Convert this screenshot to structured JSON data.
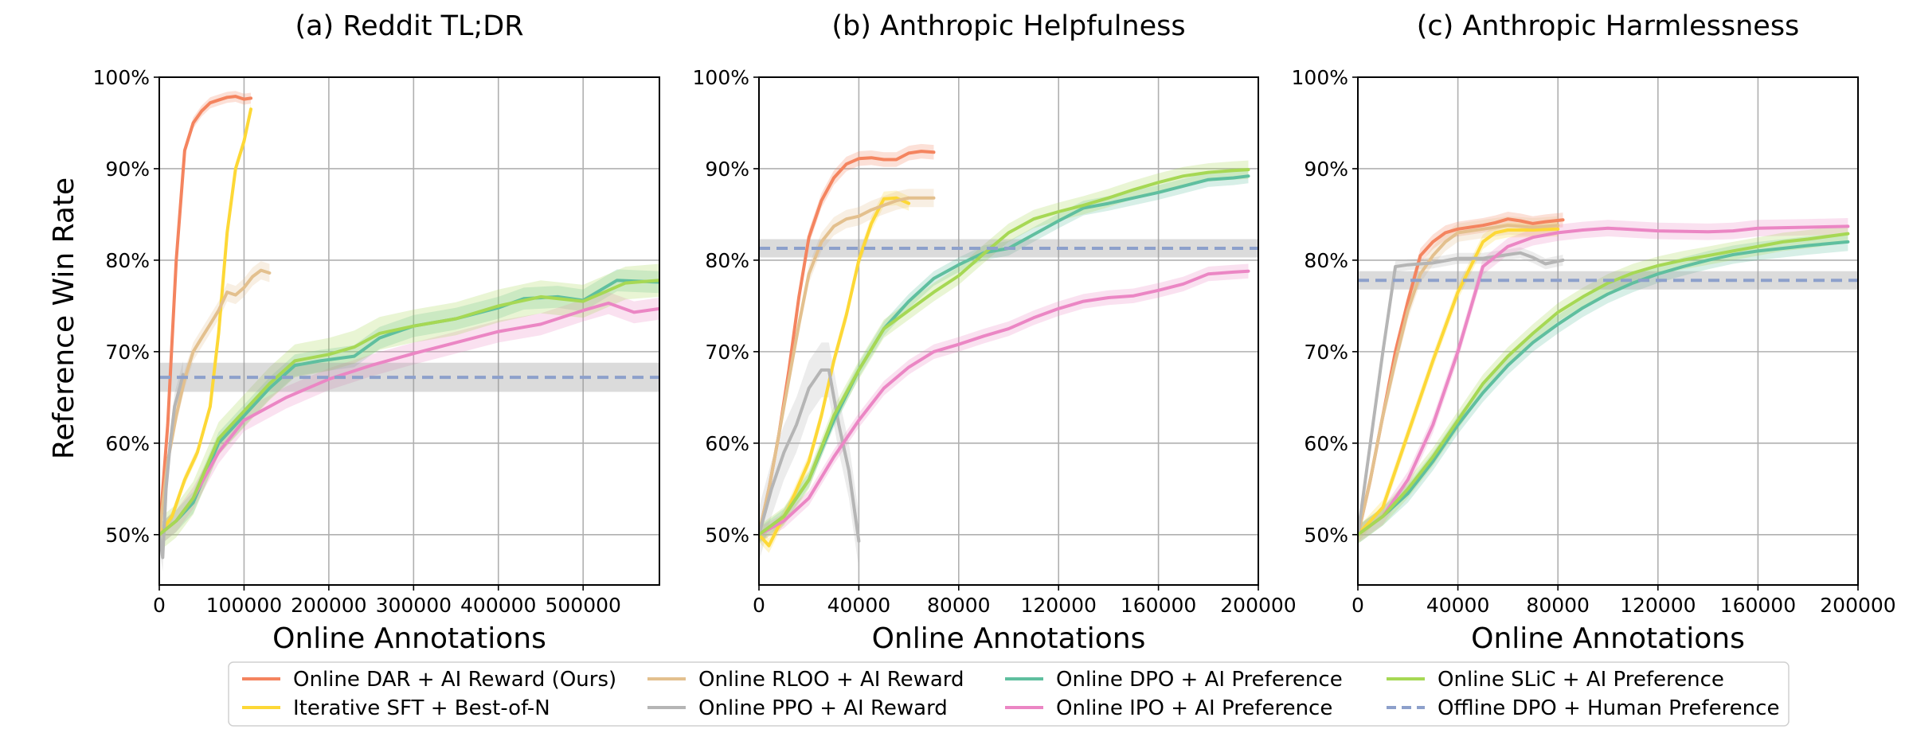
{
  "figure": {
    "ylabel": "Reference Win Rate",
    "legend": {
      "location": "bottom-center",
      "entries": [
        {
          "name": "Online DAR + AI Reward (Ours)",
          "color": "#f4845f",
          "style": "solid"
        },
        {
          "name": "Iterative SFT + Best-of-N",
          "color": "#fdd836",
          "style": "solid"
        },
        {
          "name": "Online RLOO + AI Reward",
          "color": "#e3c08e",
          "style": "solid"
        },
        {
          "name": "Online PPO + AI Reward",
          "color": "#b5b5b5",
          "style": "solid"
        },
        {
          "name": "Online DPO + AI Preference",
          "color": "#5fbf9f",
          "style": "solid"
        },
        {
          "name": "Online IPO + AI Preference",
          "color": "#eb86c4",
          "style": "solid"
        },
        {
          "name": "Online SLiC + AI Preference",
          "color": "#a6d854",
          "style": "solid"
        },
        {
          "name": "Offline DPO + Human Preference",
          "color": "#8da0cb",
          "style": "dashed"
        }
      ]
    }
  },
  "chart_data": [
    {
      "type": "line",
      "title": "(a) Reddit TL;DR",
      "xlabel": "Online Annotations",
      "ylabel": "Reference Win Rate",
      "xlim": [
        0,
        590000
      ],
      "ylim": [
        44.5,
        100
      ],
      "xticks": [
        0,
        100000,
        200000,
        300000,
        400000,
        500000
      ],
      "xtick_labels": [
        "0",
        "100000",
        "200000",
        "300000",
        "400000",
        "500000"
      ],
      "yticks": [
        50,
        60,
        70,
        80,
        90,
        100
      ],
      "ytick_labels": [
        "50%",
        "60%",
        "70%",
        "80%",
        "90%",
        "100%"
      ],
      "grid": true,
      "series": [
        {
          "name": "Online DAR + AI Reward (Ours)",
          "color": "#f4845f",
          "band": 0.6,
          "x": [
            0,
            10000,
            20000,
            30000,
            40000,
            50000,
            60000,
            70000,
            80000,
            90000,
            100000,
            108000
          ],
          "y": [
            50,
            62,
            80,
            92,
            95,
            96.3,
            97.2,
            97.5,
            97.8,
            97.9,
            97.6,
            97.7
          ]
        },
        {
          "name": "Iterative SFT + Best-of-N",
          "color": "#fdd836",
          "band": 0.6,
          "x": [
            0,
            15000,
            30000,
            45000,
            60000,
            70000,
            80000,
            90000,
            100000,
            108000
          ],
          "y": [
            50,
            52,
            56,
            59,
            64,
            72,
            83,
            90,
            93,
            96.5
          ]
        },
        {
          "name": "Online RLOO + AI Reward",
          "color": "#e3c08e",
          "band": 1.0,
          "x": [
            0,
            10000,
            20000,
            30000,
            40000,
            50000,
            60000,
            70000,
            80000,
            90000,
            100000,
            110000,
            120000,
            130000
          ],
          "y": [
            50,
            58,
            63,
            67,
            70,
            71.5,
            73,
            74.5,
            76.5,
            76.2,
            77,
            78.2,
            78.9,
            78.6
          ]
        },
        {
          "name": "Online PPO + AI Reward",
          "color": "#b5b5b5",
          "band": 1.5,
          "x": [
            0,
            4000,
            8000,
            13000,
            18000,
            24000,
            28000
          ],
          "y": [
            50,
            47.5,
            55,
            60,
            64,
            66,
            67.5
          ]
        },
        {
          "name": "Online DPO + AI Preference",
          "color": "#5fbf9f",
          "band": 1.2,
          "x": [
            0,
            20000,
            40000,
            70000,
            100000,
            130000,
            160000,
            190000,
            230000,
            260000,
            300000,
            350000,
            400000,
            430000,
            470000,
            500000,
            540000,
            590000
          ],
          "y": [
            50,
            51.5,
            53.5,
            60,
            63,
            66,
            68.5,
            69,
            69.5,
            71.5,
            72.8,
            73.6,
            74.8,
            75.8,
            76,
            75.6,
            77.8,
            77.6
          ]
        },
        {
          "name": "Online IPO + AI Preference",
          "color": "#eb86c4",
          "band": 1.2,
          "x": [
            0,
            20000,
            40000,
            70000,
            100000,
            150000,
            200000,
            250000,
            300000,
            350000,
            400000,
            450000,
            500000,
            530000,
            560000,
            590000
          ],
          "y": [
            50,
            51.5,
            54,
            59,
            62.5,
            65,
            67,
            68.5,
            69.8,
            71,
            72.2,
            73,
            74.5,
            75.3,
            74.3,
            74.7
          ]
        },
        {
          "name": "Online SLiC + AI Preference",
          "color": "#a6d854",
          "band": 1.8,
          "x": [
            0,
            20000,
            40000,
            70000,
            100000,
            130000,
            160000,
            200000,
            230000,
            260000,
            300000,
            350000,
            400000,
            450000,
            500000,
            550000,
            590000
          ],
          "y": [
            50,
            51.5,
            54,
            60.5,
            63.5,
            66.5,
            69,
            69.7,
            70.5,
            72,
            72.8,
            73.6,
            75,
            76,
            75.5,
            77.5,
            77.8
          ]
        },
        {
          "name": "Offline DPO + Human Preference",
          "color": "#8da0cb",
          "dashed": true,
          "band": 1.6,
          "x": [
            0,
            590000
          ],
          "y": [
            67.2,
            67.2
          ]
        }
      ]
    },
    {
      "type": "line",
      "title": "(b) Anthropic Helpfulness",
      "xlabel": "Online Annotations",
      "ylabel": "Reference Win Rate",
      "xlim": [
        0,
        200000
      ],
      "ylim": [
        44.5,
        100
      ],
      "xticks": [
        0,
        40000,
        80000,
        120000,
        160000,
        200000
      ],
      "xtick_labels": [
        "0",
        "40000",
        "80000",
        "120000",
        "160000",
        "200000"
      ],
      "yticks": [
        50,
        60,
        70,
        80,
        90,
        100
      ],
      "ytick_labels": [
        "50%",
        "60%",
        "70%",
        "80%",
        "90%",
        "100%"
      ],
      "grid": true,
      "series": [
        {
          "name": "Online DAR + AI Reward (Ours)",
          "color": "#f4845f",
          "band": 0.8,
          "x": [
            0,
            4000,
            8000,
            12000,
            16000,
            20000,
            25000,
            30000,
            35000,
            40000,
            45000,
            50000,
            55000,
            60000,
            65000,
            70000
          ],
          "y": [
            50,
            55,
            61,
            68,
            76,
            82.5,
            86.5,
            89,
            90.5,
            91.1,
            91.2,
            91.0,
            91.0,
            91.7,
            91.9,
            91.8
          ]
        },
        {
          "name": "Iterative SFT + Best-of-N",
          "color": "#fdd836",
          "band": 0.8,
          "x": [
            0,
            4000,
            8000,
            12000,
            16000,
            20000,
            25000,
            30000,
            35000,
            40000,
            45000,
            50000,
            55000,
            60000
          ],
          "y": [
            50,
            48.8,
            51,
            53,
            55.5,
            58,
            63,
            69,
            74,
            80,
            84,
            86.7,
            86.8,
            86.2
          ]
        },
        {
          "name": "Online RLOO + AI Reward",
          "color": "#e3c08e",
          "band": 1.0,
          "x": [
            0,
            4000,
            8000,
            12000,
            16000,
            20000,
            25000,
            30000,
            35000,
            40000,
            45000,
            50000,
            55000,
            60000,
            65000,
            70000
          ],
          "y": [
            50,
            55,
            61,
            67,
            73,
            78.5,
            82,
            83.7,
            84.5,
            84.8,
            85.5,
            86,
            86.5,
            86.8,
            86.8,
            86.8
          ]
        },
        {
          "name": "Online PPO + AI Reward",
          "color": "#b5b5b5",
          "band": 3.0,
          "x": [
            0,
            5000,
            10000,
            15000,
            20000,
            25000,
            28000,
            32000,
            36000,
            40000
          ],
          "y": [
            50,
            55,
            59,
            62,
            66,
            68,
            68,
            62,
            57,
            49.3
          ]
        },
        {
          "name": "Online DPO + AI Preference",
          "color": "#5fbf9f",
          "band": 0.8,
          "x": [
            0,
            10000,
            20000,
            30000,
            40000,
            50000,
            60000,
            70000,
            80000,
            90000,
            100000,
            110000,
            120000,
            130000,
            140000,
            150000,
            160000,
            170000,
            180000,
            190000,
            196000
          ],
          "y": [
            50,
            52,
            56,
            62.5,
            68,
            72.5,
            75.5,
            78,
            79.5,
            80.8,
            81.3,
            82.8,
            84.3,
            85.7,
            86.2,
            86.8,
            87.4,
            88.1,
            88.8,
            89.0,
            89.2
          ]
        },
        {
          "name": "Online IPO + AI Preference",
          "color": "#eb86c4",
          "band": 0.8,
          "x": [
            0,
            10000,
            20000,
            30000,
            40000,
            50000,
            60000,
            70000,
            80000,
            90000,
            100000,
            110000,
            120000,
            130000,
            140000,
            150000,
            160000,
            170000,
            180000,
            190000,
            196000
          ],
          "y": [
            50,
            51.5,
            54,
            58.5,
            62.5,
            66,
            68.3,
            70,
            70.8,
            71.7,
            72.5,
            73.7,
            74.7,
            75.5,
            75.9,
            76.1,
            76.7,
            77.4,
            78.5,
            78.7,
            78.8
          ]
        },
        {
          "name": "Online SLiC + AI Preference",
          "color": "#a6d854",
          "band": 1.0,
          "x": [
            0,
            10000,
            20000,
            30000,
            40000,
            50000,
            60000,
            70000,
            80000,
            90000,
            100000,
            110000,
            120000,
            130000,
            140000,
            150000,
            160000,
            170000,
            180000,
            190000,
            196000
          ],
          "y": [
            50,
            52,
            56,
            63,
            68,
            72.5,
            74.5,
            76.5,
            78.3,
            80.7,
            83,
            84.5,
            85.3,
            86,
            86.8,
            87.7,
            88.5,
            89.2,
            89.6,
            89.8,
            89.9
          ]
        },
        {
          "name": "Offline DPO + Human Preference",
          "color": "#8da0cb",
          "dashed": true,
          "band": 1.0,
          "x": [
            0,
            200000
          ],
          "y": [
            81.3,
            81.3
          ]
        }
      ]
    },
    {
      "type": "line",
      "title": "(c) Anthropic Harmlessness",
      "xlabel": "Online Annotations",
      "ylabel": "Reference Win Rate",
      "xlim": [
        0,
        200000
      ],
      "ylim": [
        44.5,
        100
      ],
      "xticks": [
        0,
        40000,
        80000,
        120000,
        160000,
        200000
      ],
      "xtick_labels": [
        "0",
        "40000",
        "80000",
        "120000",
        "160000",
        "200000"
      ],
      "yticks": [
        50,
        60,
        70,
        80,
        90,
        100
      ],
      "ytick_labels": [
        "50%",
        "60%",
        "70%",
        "80%",
        "90%",
        "100%"
      ],
      "grid": true,
      "series": [
        {
          "name": "Online DAR + AI Reward (Ours)",
          "color": "#f4845f",
          "band": 0.8,
          "x": [
            0,
            5000,
            10000,
            15000,
            20000,
            25000,
            30000,
            35000,
            40000,
            45000,
            50000,
            55000,
            60000,
            65000,
            70000,
            75000,
            82000
          ],
          "y": [
            50,
            56,
            63,
            70,
            75.5,
            80.5,
            82,
            83,
            83.4,
            83.6,
            83.8,
            84.1,
            84.5,
            84.3,
            84.0,
            84.2,
            84.4
          ]
        },
        {
          "name": "Iterative SFT + Best-of-N",
          "color": "#fdd836",
          "band": 0.8,
          "x": [
            0,
            10000,
            20000,
            30000,
            40000,
            50000,
            55000,
            60000,
            70000,
            80000
          ],
          "y": [
            50,
            53,
            61,
            69,
            76.5,
            82,
            83,
            83.3,
            83.3,
            83.4
          ]
        },
        {
          "name": "Online RLOO + AI Reward",
          "color": "#e3c08e",
          "band": 1.0,
          "x": [
            0,
            5000,
            10000,
            15000,
            20000,
            25000,
            30000,
            35000,
            40000,
            50000,
            60000,
            70000,
            80000
          ],
          "y": [
            50,
            56,
            63,
            69,
            74.5,
            78.5,
            80.5,
            82,
            83,
            83.4,
            83.8,
            83.6,
            83.8
          ]
        },
        {
          "name": "Online PPO + AI Reward",
          "color": "#b5b5b5",
          "band": 0.6,
          "x": [
            0,
            5000,
            10000,
            15000,
            20000,
            25000,
            30000,
            40000,
            50000,
            60000,
            65000,
            70000,
            75000,
            82000
          ],
          "y": [
            50,
            60,
            70,
            79.3,
            79.5,
            79.6,
            79.7,
            80.2,
            80.2,
            80.6,
            80.8,
            80.3,
            79.6,
            80.0
          ]
        },
        {
          "name": "Online DPO + AI Preference",
          "color": "#5fbf9f",
          "band": 1.0,
          "x": [
            0,
            10000,
            20000,
            30000,
            40000,
            50000,
            60000,
            70000,
            80000,
            90000,
            100000,
            110000,
            120000,
            130000,
            140000,
            150000,
            160000,
            170000,
            180000,
            196000
          ],
          "y": [
            50,
            52,
            54.5,
            58,
            62,
            65.5,
            68.5,
            71,
            73,
            74.8,
            76.3,
            77.5,
            78.5,
            79.3,
            80,
            80.6,
            81,
            81.3,
            81.6,
            82
          ]
        },
        {
          "name": "Online IPO + AI Preference",
          "color": "#eb86c4",
          "band": 0.9,
          "x": [
            0,
            10000,
            20000,
            30000,
            40000,
            50000,
            60000,
            70000,
            80000,
            90000,
            100000,
            120000,
            140000,
            150000,
            160000,
            180000,
            196000
          ],
          "y": [
            50,
            52,
            56,
            62,
            70,
            79.3,
            81.5,
            82.5,
            83,
            83.3,
            83.5,
            83.2,
            83.1,
            83.2,
            83.5,
            83.6,
            83.7
          ]
        },
        {
          "name": "Online SLiC + AI Preference",
          "color": "#a6d854",
          "band": 1.0,
          "x": [
            0,
            10000,
            20000,
            30000,
            40000,
            50000,
            60000,
            70000,
            80000,
            90000,
            100000,
            110000,
            120000,
            130000,
            140000,
            150000,
            160000,
            170000,
            180000,
            196000
          ],
          "y": [
            50,
            52,
            55,
            58.5,
            62.5,
            66.5,
            69.5,
            72,
            74.3,
            76,
            77.5,
            78.6,
            79.4,
            80,
            80.5,
            81,
            81.5,
            82,
            82.3,
            82.9
          ]
        },
        {
          "name": "Offline DPO + Human Preference",
          "color": "#8da0cb",
          "dashed": true,
          "band": 1.0,
          "x": [
            0,
            200000
          ],
          "y": [
            77.8,
            77.8
          ]
        }
      ]
    }
  ]
}
